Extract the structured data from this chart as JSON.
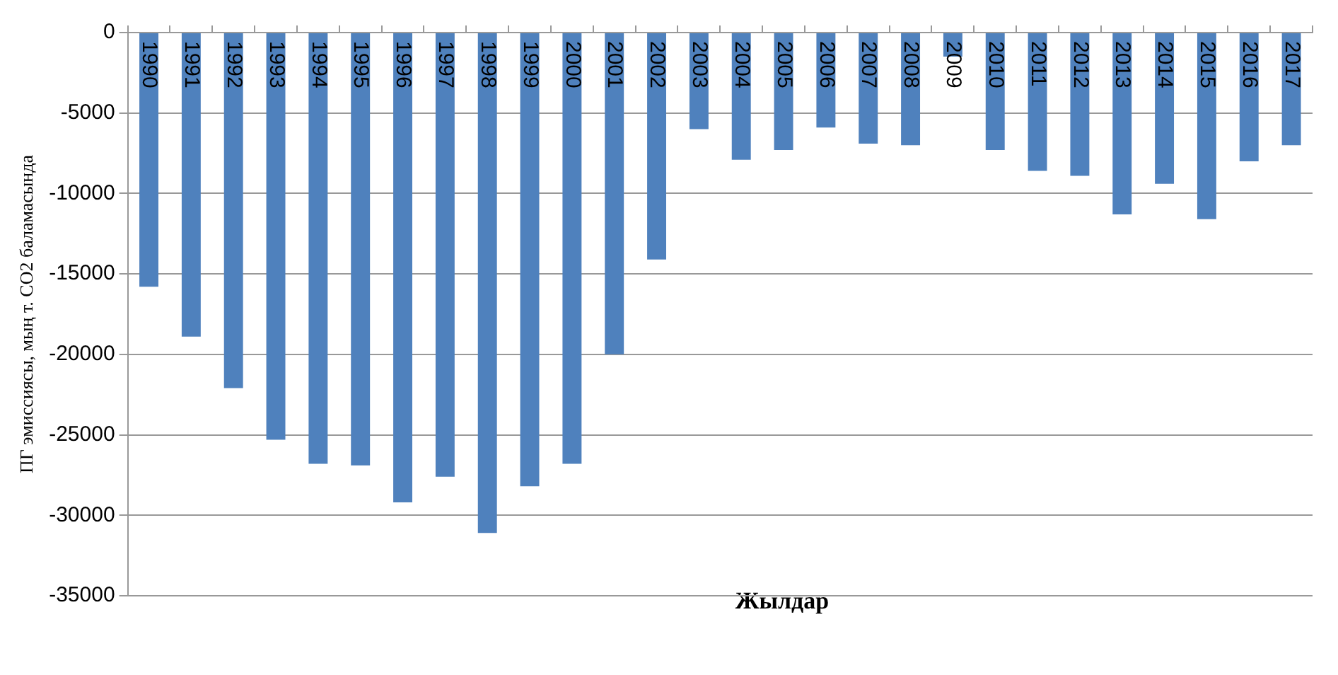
{
  "chart_data": {
    "type": "bar",
    "xlabel": "Жылдар",
    "ylabel": "ПГ эмиссиясы, мың т. CO2 баламасында",
    "categories": [
      "1990",
      "1991",
      "1992",
      "1993",
      "1994",
      "1995",
      "1996",
      "1997",
      "1998",
      "1999",
      "2000",
      "2001",
      "2002",
      "2003",
      "2004",
      "2005",
      "2006",
      "2007",
      "2008",
      "2009",
      "2010",
      "2011",
      "2012",
      "2013",
      "2014",
      "2015",
      "2016",
      "2017"
    ],
    "values": [
      -15800,
      -18900,
      -22100,
      -25300,
      -26800,
      -26900,
      -29200,
      -27600,
      -31100,
      -28200,
      -26800,
      -20000,
      -14100,
      -6000,
      -7900,
      -7300,
      -5900,
      -6900,
      -7000,
      -1500,
      -7300,
      -8600,
      -8900,
      -11300,
      -9400,
      -11600,
      -8000,
      -7000
    ],
    "color": "#4f81bd",
    "ylim": [
      -35000,
      0
    ],
    "yticks": [
      -35000,
      -30000,
      -25000,
      -20000,
      -15000,
      -10000,
      -5000,
      0
    ],
    "grid": "y",
    "legend": false
  }
}
